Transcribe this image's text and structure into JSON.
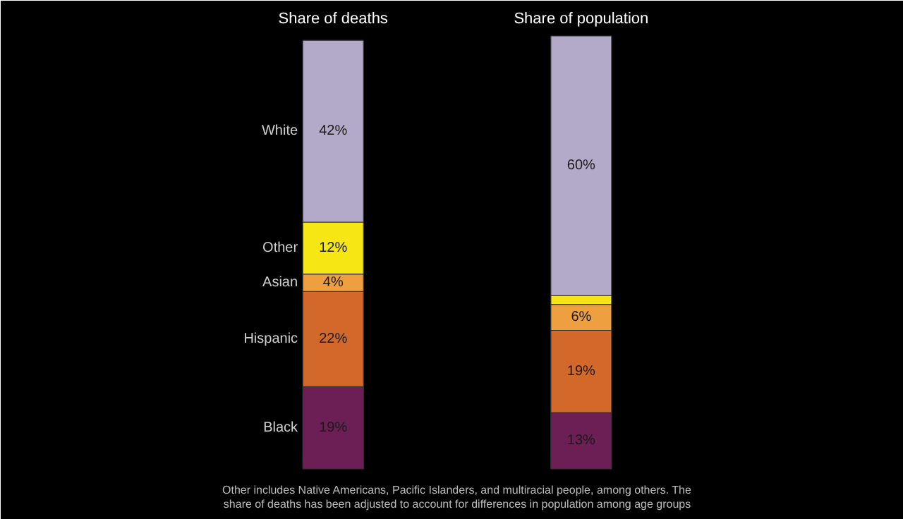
{
  "chart_data": {
    "type": "bar",
    "stacked": true,
    "categories": [
      "Share of deaths",
      "Share of population"
    ],
    "series": [
      {
        "name": "Black",
        "color": "#6b1f55",
        "values": [
          19,
          13
        ],
        "value_labels": [
          "19%",
          "13%"
        ]
      },
      {
        "name": "Hispanic",
        "color": "#d2692a",
        "values": [
          22,
          19
        ],
        "value_labels": [
          "22%",
          "19%"
        ]
      },
      {
        "name": "Asian",
        "color": "#eea040",
        "values": [
          4,
          6
        ],
        "value_labels": [
          "4%",
          "6%"
        ]
      },
      {
        "name": "Other",
        "color": "#f5e614",
        "values": [
          12,
          2
        ],
        "value_labels": [
          "12%",
          null
        ]
      },
      {
        "name": "White",
        "color": "#b3a9c8",
        "values": [
          42,
          60
        ],
        "value_labels": [
          "42%",
          "60%"
        ]
      }
    ],
    "annotations": [
      "Other includes Native Americans, Pacific Islanders, and multiracial people, among others. The share of deaths has been adjusted to account for differences in population among age groups"
    ]
  }
}
